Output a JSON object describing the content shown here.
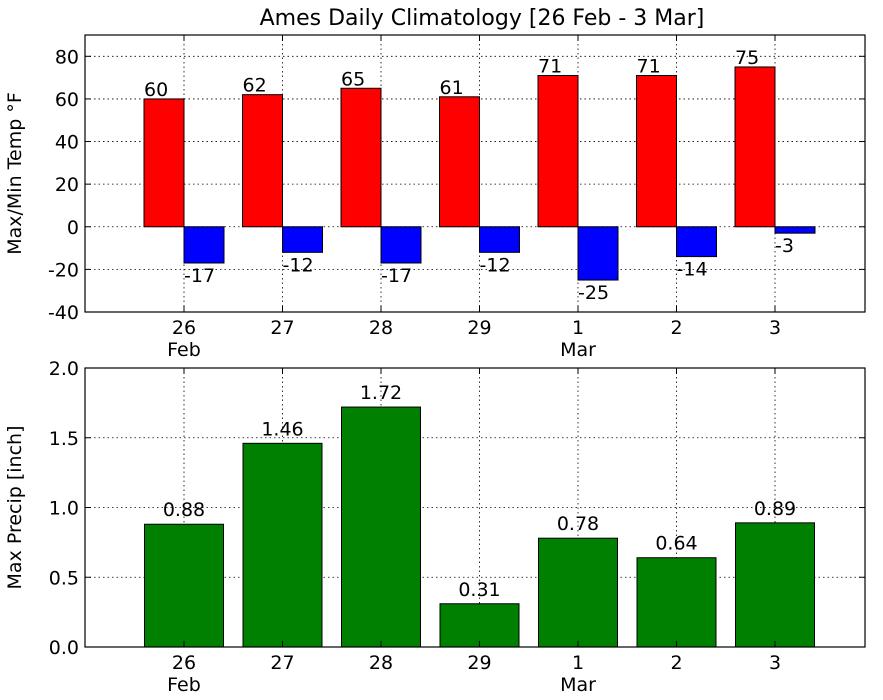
{
  "figure": {
    "title": "Ames Daily Climatology [26 Feb - 3 Mar]"
  },
  "chart_data": [
    {
      "type": "bar",
      "categories": [
        "26",
        "27",
        "28",
        "29",
        "1",
        "2",
        "3"
      ],
      "month_labels": [
        "Feb",
        "",
        "",
        "",
        "Mar",
        "",
        ""
      ],
      "series": [
        {
          "name": "",
          "values": [
            60,
            62,
            65,
            61,
            71,
            71,
            75
          ],
          "color": "#ff0000"
        },
        {
          "name": "",
          "values": [
            -17,
            -12,
            -17,
            -12,
            -25,
            -14,
            -3
          ],
          "color": "#0000ff"
        }
      ],
      "ylabel": "Max/Min Temp °F",
      "ylim": [
        -40,
        90
      ],
      "yticks": [
        -40,
        -20,
        0,
        20,
        40,
        60,
        80
      ],
      "grid": true
    },
    {
      "type": "bar",
      "categories": [
        "26",
        "27",
        "28",
        "29",
        "1",
        "2",
        "3"
      ],
      "month_labels": [
        "Feb",
        "",
        "",
        "",
        "Mar",
        "",
        ""
      ],
      "series": [
        {
          "name": "",
          "values": [
            0.88,
            1.46,
            1.72,
            0.31,
            0.78,
            0.64,
            0.89
          ],
          "color": "#008000"
        }
      ],
      "ylabel": "Max Precip [inch]",
      "ylim": [
        0,
        2.0
      ],
      "yticks": [
        0.0,
        0.5,
        1.0,
        1.5,
        2.0
      ],
      "ytick_labels": [
        "0.0",
        "0.5",
        "1.0",
        "1.5",
        "2.0"
      ],
      "value_labels": [
        "0.88",
        "1.46",
        "1.72",
        "0.31",
        "0.78",
        "0.64",
        "0.89"
      ],
      "grid": true
    }
  ]
}
